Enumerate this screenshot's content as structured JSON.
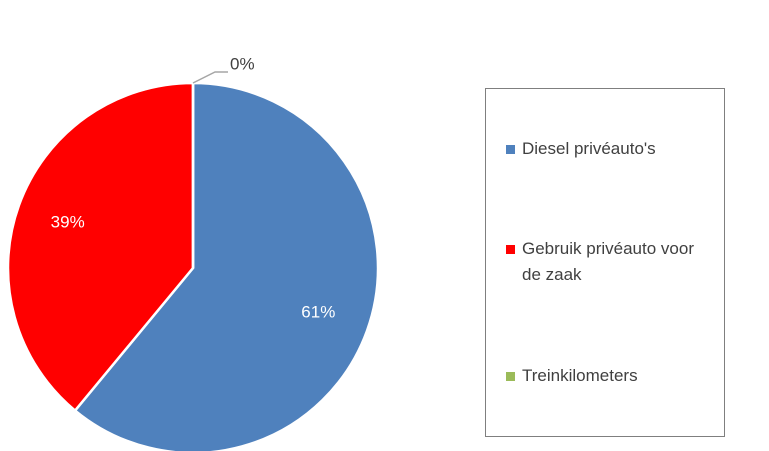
{
  "chart_data": {
    "type": "pie",
    "categories": [
      "Diesel privéauto's",
      "Gebruik privéauto voor de zaak",
      "Treinkilometers"
    ],
    "values": [
      61,
      39,
      0
    ],
    "value_labels": [
      "61%",
      "39%",
      "0%"
    ],
    "colors": [
      "#4f81bd",
      "#ff0000",
      "#9bbb59"
    ],
    "legend": "right"
  }
}
